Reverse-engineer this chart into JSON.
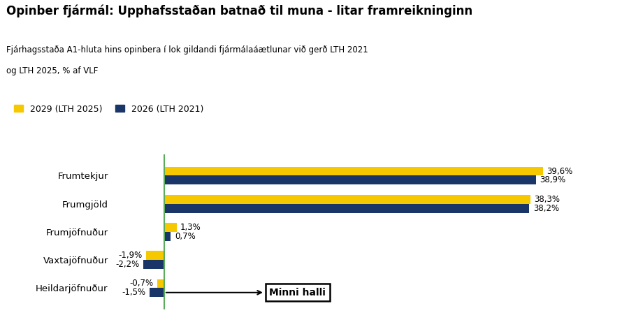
{
  "title": "Opinber fjármál: Upphafsstaðan batnað til muna - litar framreikninginn",
  "subtitle_line1": "Fjárhagsstaða A1-hluta hins opinbera í lok gildandi fjármálaáætlunar við gerð LTH 2021",
  "subtitle_line2": "og LTH 2025, % af VLF",
  "legend": [
    "2029 (LTH 2025)",
    "2026 (LTH 2021)"
  ],
  "legend_colors": [
    "#F5C800",
    "#1A3668"
  ],
  "categories": [
    "Frumtekjur",
    "Frumgjöld",
    "Frumjöfnuður",
    "Vaxtajöfnuður",
    "Heildarjöfnuður"
  ],
  "values_yellow": [
    39.6,
    38.3,
    1.3,
    -1.9,
    -0.7
  ],
  "values_blue": [
    38.9,
    38.2,
    0.7,
    -2.2,
    -1.5
  ],
  "labels_yellow": [
    "39,6%",
    "38,3%",
    "1,3%",
    "-1,9%",
    "-0,7%"
  ],
  "labels_blue": [
    "38,9%",
    "38,2%",
    "0,7%",
    "-2,2%",
    "-1,5%"
  ],
  "color_yellow": "#F5C800",
  "color_blue": "#1A3668",
  "color_vline": "#5BAD5B",
  "annotation_text": "Minni halli",
  "background_color": "#FFFFFF",
  "bar_height": 0.32,
  "xlim": [
    -5,
    45
  ]
}
